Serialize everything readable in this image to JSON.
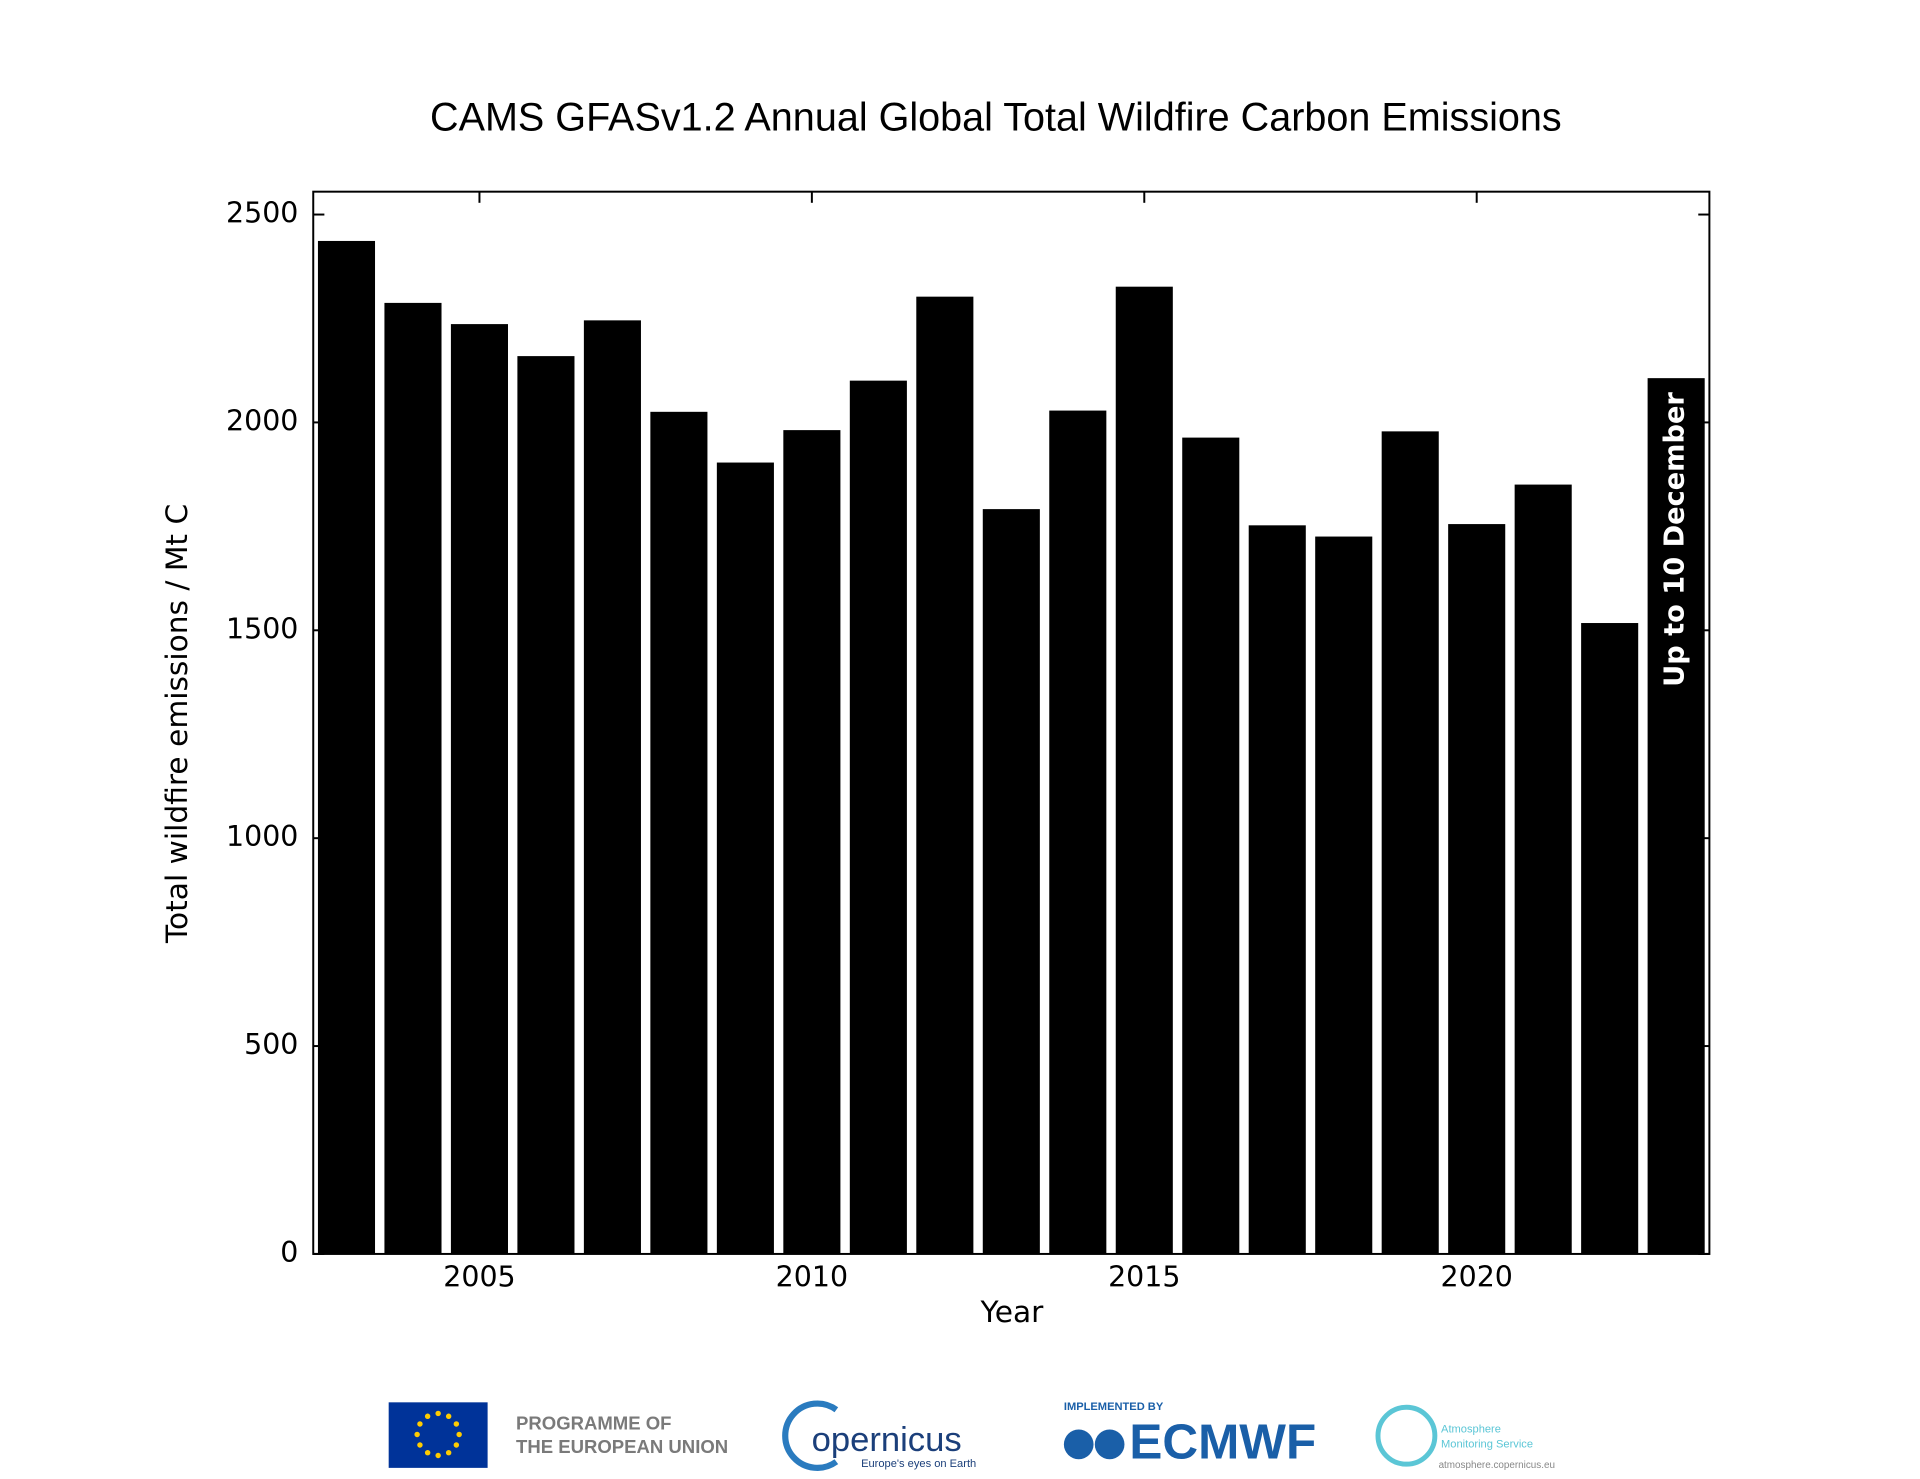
{
  "chart_data": {
    "type": "bar",
    "title": "CAMS GFASv1.2 Annual Global Total Wildfire Carbon Emissions",
    "x_label": "Year",
    "y_label": "Total wildfire emissions / Mt C",
    "x": [
      2003,
      2004,
      2005,
      2006,
      2007,
      2008,
      2009,
      2010,
      2011,
      2012,
      2013,
      2014,
      2015,
      2016,
      2017,
      2018,
      2019,
      2020,
      2021,
      2022,
      2023
    ],
    "values": [
      2435,
      2286,
      2235,
      2158,
      2244,
      2024,
      1902,
      1980,
      2099,
      2301,
      1790,
      2027,
      2325,
      1962,
      1751,
      1724,
      1977,
      1754,
      1849,
      1516,
      2105
    ],
    "color": "#000000",
    "xlim": [
      2002.5,
      2023.5
    ],
    "xticks": [
      2005,
      2010,
      2015,
      2020
    ],
    "ylim": [
      0,
      2555
    ],
    "yticks": [
      0,
      500,
      1000,
      1500,
      2000,
      2500
    ],
    "annotation": "Up to 10 December"
  },
  "logos": {
    "eu_line1": "PROGRAMME OF",
    "eu_line2": "THE EUROPEAN UNION",
    "copernicus": "opernicus",
    "copernicus_tagline": "Europe's eyes on Earth",
    "ecmwf_caption": "IMPLEMENTED BY",
    "ecmwf": "ECMWF",
    "cams_line1": "Atmosphere",
    "cams_line2": "Monitoring Service",
    "cams_url": "atmosphere.copernicus.eu"
  }
}
